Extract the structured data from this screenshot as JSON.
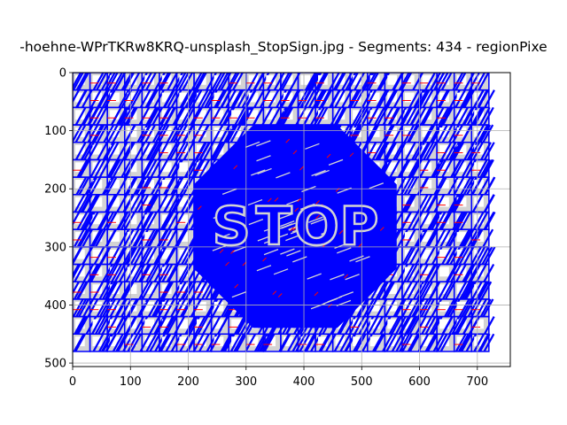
{
  "chart_data": {
    "type": "scatter",
    "title": "-hoehne-WPrTKRw8KRQ-unsplash_StopSign.jpg - Segments: 434 - regionPixe",
    "xlabel": "",
    "ylabel": "",
    "xlim": [
      0,
      757
    ],
    "ylim": [
      506,
      0
    ],
    "y_inverted": true,
    "x_ticks": [
      0,
      100,
      200,
      300,
      400,
      500,
      600,
      700
    ],
    "y_ticks": [
      0,
      100,
      200,
      300,
      400,
      500
    ],
    "x_tick_labels": [
      "0",
      "100",
      "200",
      "300",
      "400",
      "500",
      "600",
      "700"
    ],
    "y_tick_labels": [
      "0",
      "100",
      "200",
      "300",
      "400",
      "500"
    ],
    "grid": true,
    "image_extent": {
      "x": [
        0,
        720
      ],
      "y": [
        0,
        480
      ]
    },
    "segments": 434,
    "grid_cell_size": 30,
    "stop_sign": {
      "center": [
        385,
        265
      ],
      "radius": 190,
      "sides": 8,
      "text": "STOP"
    },
    "series": [
      {
        "role": "boundary-lines",
        "color": "#0000ff"
      },
      {
        "role": "region-seeds",
        "color": "#ff0000"
      },
      {
        "role": "background-fill",
        "color": "#d3d3d3"
      }
    ]
  }
}
